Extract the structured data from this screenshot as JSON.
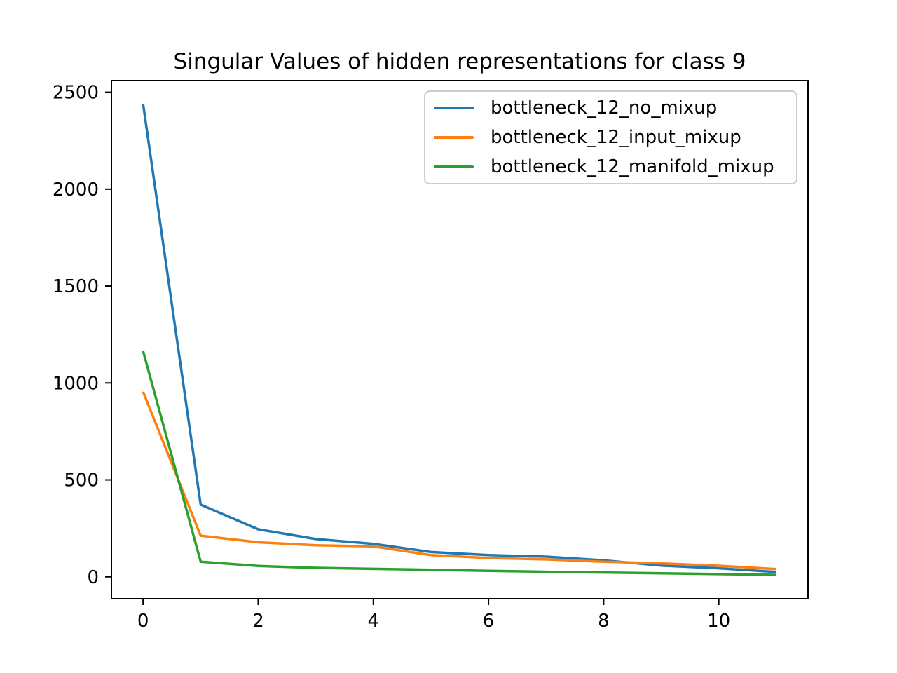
{
  "figure": {
    "title": "Singular Values of hidden representations for class 9",
    "background_color": "#ffffff",
    "spine_color": "#000000",
    "text_color": "#000000",
    "legend_border_color": "#cccccc"
  },
  "chart_data": {
    "type": "line",
    "title": "Singular Values of hidden representations for class 9",
    "xlabel": "",
    "ylabel": "",
    "x": [
      0,
      1,
      2,
      3,
      4,
      5,
      6,
      7,
      8,
      9,
      10,
      11
    ],
    "x_ticks": [
      0,
      2,
      4,
      6,
      8,
      10
    ],
    "y_ticks": [
      0,
      500,
      1000,
      1500,
      2000,
      2500
    ],
    "xlim": [
      -0.55,
      11.55
    ],
    "ylim": [
      -113,
      2560
    ],
    "grid": false,
    "legend_position": "upper right",
    "series": [
      {
        "name": "bottleneck_12_no_mixup",
        "color": "#1f77b4",
        "values": [
          2440,
          372,
          245,
          195,
          170,
          128,
          112,
          104,
          85,
          58,
          44,
          25
        ]
      },
      {
        "name": "bottleneck_12_input_mixup",
        "color": "#ff7f0e",
        "values": [
          955,
          212,
          178,
          163,
          157,
          112,
          97,
          90,
          78,
          69,
          57,
          40
        ]
      },
      {
        "name": "bottleneck_12_manifold_mixup",
        "color": "#2ca02c",
        "values": [
          1165,
          78,
          56,
          46,
          41,
          36,
          31,
          26,
          22,
          18,
          14,
          10
        ]
      }
    ]
  }
}
